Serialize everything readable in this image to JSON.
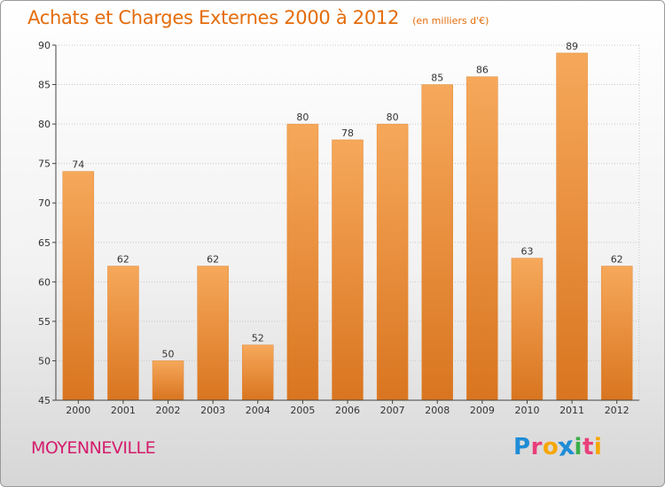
{
  "title": "Achats et Charges Externes 2000 à 2012",
  "unit_note": "(en milliers d'€)",
  "location": "MOYENNEVILLE",
  "logo": {
    "letters": [
      "P",
      "r",
      "o",
      "x",
      "i",
      "t",
      "i"
    ],
    "colors": [
      "#1f8dd6",
      "#e83f7a",
      "#f7a600",
      "#1f8dd6",
      "#3bae49",
      "#e83f7a",
      "#f7a600"
    ]
  },
  "colors": {
    "bar_top": "#f6a85a",
    "bar_bottom": "#d97520",
    "text_accent": "#e46c0a",
    "location": "#d41c6c"
  },
  "chart_data": {
    "type": "bar",
    "title": "Achats et Charges Externes 2000 à 2012",
    "subtitle": "(en milliers d'€)",
    "categories": [
      "2000",
      "2001",
      "2002",
      "2003",
      "2004",
      "2005",
      "2006",
      "2007",
      "2008",
      "2009",
      "2010",
      "2011",
      "2012"
    ],
    "values": [
      74,
      62,
      50,
      62,
      52,
      80,
      78,
      80,
      85,
      86,
      63,
      89,
      62
    ],
    "ylim": [
      45,
      90
    ],
    "yticks": [
      45,
      50,
      55,
      60,
      65,
      70,
      75,
      80,
      85,
      90
    ],
    "grid": true,
    "xlabel": "",
    "ylabel": ""
  }
}
